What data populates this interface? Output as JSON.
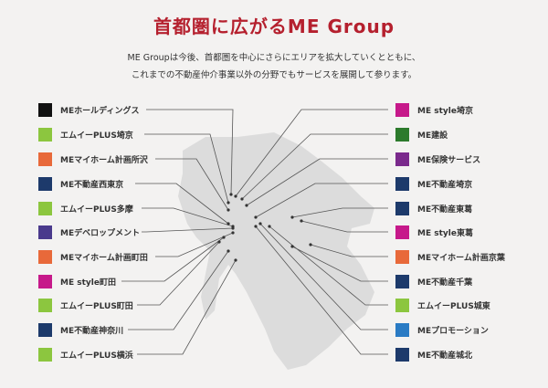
{
  "header": {
    "title": "首都圏に広がるME Group",
    "lead1": "ME Groupは今後、首都圏を中心にさらにエリアを拡大していくとともに、",
    "lead2": "これまでの不動産仲介事業以外の分野でもサービスを展開して参ります。"
  },
  "colors": {
    "title": "#b5202e",
    "map": "#dcdcdc",
    "line": "#555555"
  },
  "left_items": [
    {
      "label": "MEホールディングス",
      "icon_color": "#111111"
    },
    {
      "label": "エムイーPLUS埼京",
      "icon_color": "#8cc63f"
    },
    {
      "label": "MEマイホーム計画所沢",
      "icon_color": "#e8693a"
    },
    {
      "label": "ME不動産西東京",
      "icon_color": "#1d3a6b"
    },
    {
      "label": "エムイーPLUS多摩",
      "icon_color": "#8cc63f"
    },
    {
      "label": "MEデベロップメント",
      "icon_color": "#4a3a8c"
    },
    {
      "label": "MEマイホーム計画町田",
      "icon_color": "#e8693a"
    },
    {
      "label": "ME style町田",
      "icon_color": "#c6198a"
    },
    {
      "label": "エムイーPLUS町田",
      "icon_color": "#8cc63f"
    },
    {
      "label": "ME不動産神奈川",
      "icon_color": "#1d3a6b"
    },
    {
      "label": "エムイーPLUS横浜",
      "icon_color": "#8cc63f"
    }
  ],
  "right_items": [
    {
      "label": "ME style埼京",
      "icon_color": "#c6198a"
    },
    {
      "label": "ME建設",
      "icon_color": "#2c7a2c"
    },
    {
      "label": "ME保険サービス",
      "icon_color": "#7a2a8c"
    },
    {
      "label": "ME不動産埼京",
      "icon_color": "#1d3a6b"
    },
    {
      "label": "ME不動産東葛",
      "icon_color": "#1d3a6b"
    },
    {
      "label": "ME style東葛",
      "icon_color": "#c6198a"
    },
    {
      "label": "MEマイホーム計画京葉",
      "icon_color": "#e8693a"
    },
    {
      "label": "ME不動産千葉",
      "icon_color": "#1d3a6b"
    },
    {
      "label": "エムイーPLUS城東",
      "icon_color": "#8cc63f"
    },
    {
      "label": "MEプロモーション",
      "icon_color": "#2a7bc4"
    },
    {
      "label": "ME不動産城北",
      "icon_color": "#1d3a6b"
    }
  ]
}
